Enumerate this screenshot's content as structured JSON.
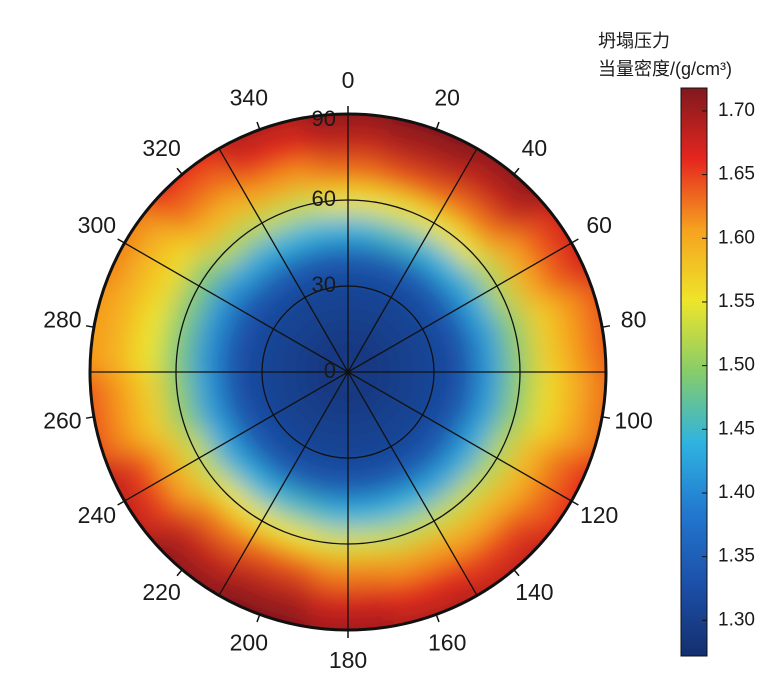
{
  "chart_data": {
    "type": "polar-contour",
    "colorbar_title": [
      "坍塌压力",
      "当量密度/(g/cm³)"
    ],
    "theta": [
      0,
      20,
      40,
      60,
      80,
      100,
      120,
      140,
      160,
      180,
      200,
      220,
      240,
      260,
      280,
      300,
      320,
      340
    ],
    "r": [
      0,
      10,
      20,
      30,
      40,
      50,
      60,
      70,
      80,
      90
    ],
    "z": [
      [
        1.29,
        1.29,
        1.29,
        1.29,
        1.29,
        1.29,
        1.29,
        1.29,
        1.29,
        1.29,
        1.29,
        1.29,
        1.29,
        1.29,
        1.29,
        1.29,
        1.29,
        1.29
      ],
      [
        1.29,
        1.29,
        1.29,
        1.29,
        1.29,
        1.29,
        1.29,
        1.29,
        1.29,
        1.29,
        1.29,
        1.29,
        1.29,
        1.29,
        1.29,
        1.29,
        1.29,
        1.29
      ],
      [
        1.3,
        1.3,
        1.3,
        1.3,
        1.3,
        1.3,
        1.3,
        1.3,
        1.3,
        1.3,
        1.3,
        1.3,
        1.3,
        1.3,
        1.3,
        1.3,
        1.3,
        1.3
      ],
      [
        1.31,
        1.31,
        1.31,
        1.31,
        1.31,
        1.31,
        1.31,
        1.31,
        1.31,
        1.31,
        1.31,
        1.31,
        1.31,
        1.31,
        1.31,
        1.31,
        1.31,
        1.31
      ],
      [
        1.34,
        1.34,
        1.34,
        1.34,
        1.33,
        1.33,
        1.34,
        1.34,
        1.34,
        1.34,
        1.34,
        1.34,
        1.34,
        1.33,
        1.33,
        1.33,
        1.34,
        1.34
      ],
      [
        1.44,
        1.45,
        1.44,
        1.43,
        1.42,
        1.42,
        1.43,
        1.43,
        1.44,
        1.44,
        1.45,
        1.44,
        1.43,
        1.42,
        1.41,
        1.41,
        1.43,
        1.44
      ],
      [
        1.55,
        1.55,
        1.55,
        1.52,
        1.5,
        1.5,
        1.52,
        1.53,
        1.53,
        1.54,
        1.55,
        1.55,
        1.53,
        1.5,
        1.49,
        1.49,
        1.52,
        1.53
      ],
      [
        1.63,
        1.64,
        1.63,
        1.6,
        1.57,
        1.56,
        1.59,
        1.6,
        1.61,
        1.62,
        1.64,
        1.63,
        1.6,
        1.57,
        1.55,
        1.56,
        1.59,
        1.61
      ],
      [
        1.68,
        1.69,
        1.68,
        1.64,
        1.61,
        1.6,
        1.63,
        1.65,
        1.66,
        1.67,
        1.69,
        1.68,
        1.65,
        1.61,
        1.59,
        1.59,
        1.63,
        1.66
      ],
      [
        1.71,
        1.72,
        1.71,
        1.67,
        1.64,
        1.63,
        1.66,
        1.68,
        1.69,
        1.7,
        1.72,
        1.71,
        1.68,
        1.64,
        1.61,
        1.62,
        1.66,
        1.69
      ]
    ],
    "rlim": [
      0,
      90
    ],
    "rticks": [
      0,
      30,
      60,
      90
    ],
    "thetaticks": [
      0,
      20,
      40,
      60,
      80,
      100,
      120,
      140,
      160,
      180,
      200,
      220,
      240,
      260,
      280,
      300,
      320,
      340
    ],
    "theta_grid": [
      0,
      30,
      60,
      90,
      120,
      150,
      180,
      210,
      240,
      270,
      300,
      330
    ],
    "zlim": [
      1.272,
      1.718
    ],
    "zticks": [
      {
        "value": 1.3,
        "label": "1.30"
      },
      {
        "value": 1.35,
        "label": "1.35"
      },
      {
        "value": 1.4,
        "label": "1.40"
      },
      {
        "value": 1.45,
        "label": "1.45"
      },
      {
        "value": 1.5,
        "label": "1.50"
      },
      {
        "value": 1.55,
        "label": "1.55"
      },
      {
        "value": 1.6,
        "label": "1.60"
      },
      {
        "value": 1.65,
        "label": "1.65"
      },
      {
        "value": 1.7,
        "label": "1.70"
      }
    ],
    "colorscale": [
      "#142f6e",
      "#1c4fa8",
      "#2277cf",
      "#2fb3e0",
      "#86cc6a",
      "#eee52a",
      "#f6a21f",
      "#e5261f",
      "#80191e"
    ]
  }
}
